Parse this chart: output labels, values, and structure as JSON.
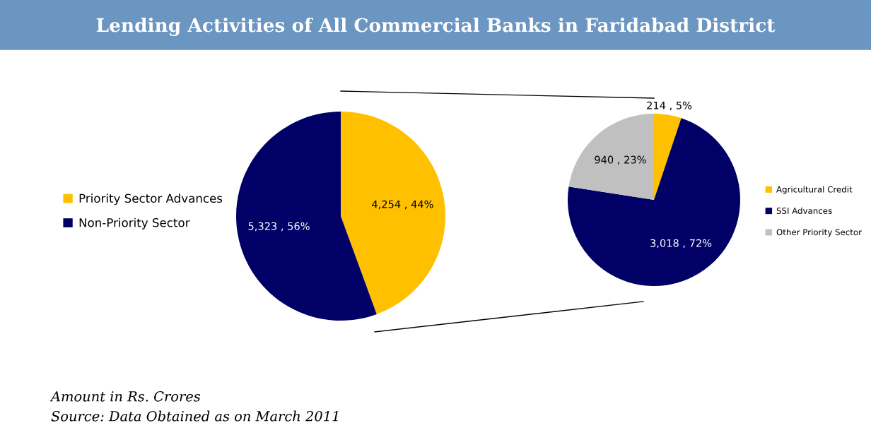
{
  "chart_data": [
    {
      "type": "pie",
      "title": "Lending Activities of All Commercial Banks in Faridabad District",
      "categories": [
        "Priority Sector Advances",
        "Non-Priority Sector"
      ],
      "values": [
        4254,
        5323
      ],
      "colors": [
        "#ffc000",
        "#000066"
      ],
      "value_labels": [
        "4,254 , 44%",
        "5,323 , 56%"
      ],
      "legend": "left"
    },
    {
      "type": "pie",
      "categories": [
        "Agricultural Credit",
        "SSI Advances",
        "Other Priority Sector"
      ],
      "values": [
        214,
        3018,
        940
      ],
      "colors": [
        "#ffc000",
        "#000066",
        "#c0c0c0"
      ],
      "value_labels": [
        "214 , 5%",
        "3,018 , 72%",
        "940 , 23%"
      ],
      "legend": "right",
      "annotations": [
        "Amount in Rs. Crores",
        "Source: Data Obtained as on March 2011"
      ]
    }
  ]
}
